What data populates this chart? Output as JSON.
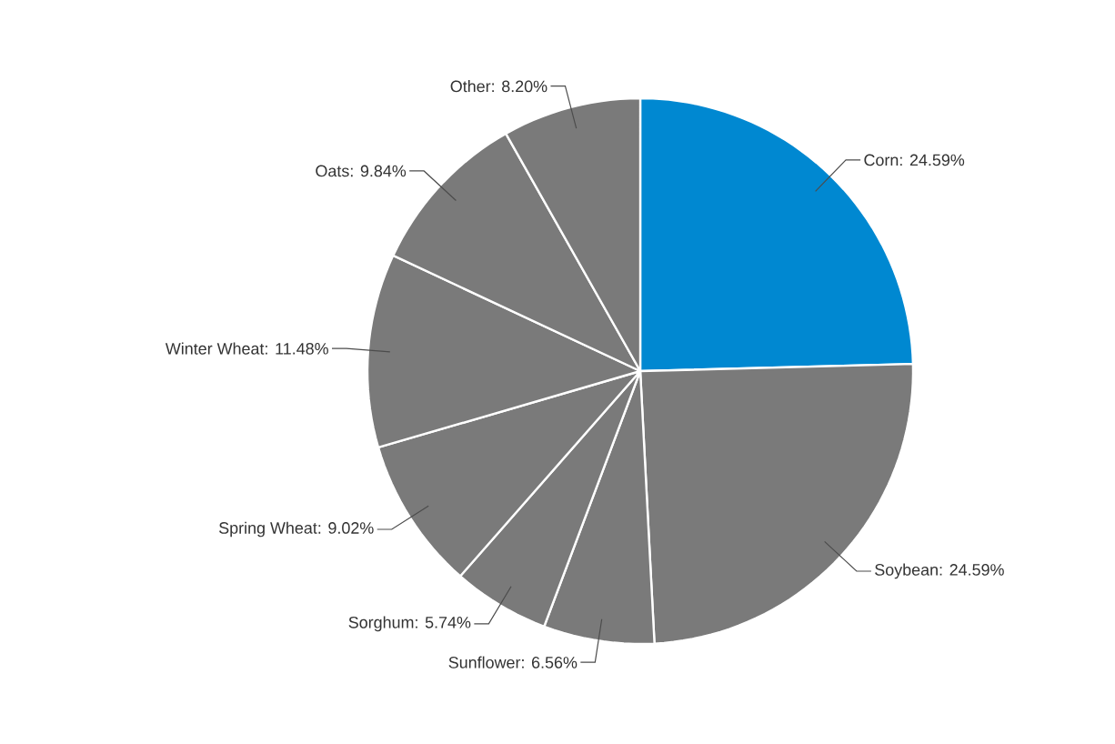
{
  "chart_data": {
    "type": "pie",
    "categories": [
      "Corn: 24.59%",
      "Soybean: 24.59%",
      "Sunflower: 6.56%",
      "Sorghum: 5.74%",
      "Spring Wheat: 9.02%",
      "Winter Wheat: 11.48%",
      "Oats: 9.84%",
      "Other: 8.20%"
    ],
    "values": [
      24.59,
      24.59,
      6.56,
      5.74,
      9.02,
      11.48,
      9.84,
      8.2
    ],
    "colors": [
      "#0088d1",
      "#7a7a7a",
      "#7a7a7a",
      "#7a7a7a",
      "#7a7a7a",
      "#7a7a7a",
      "#7a7a7a",
      "#7a7a7a"
    ]
  }
}
